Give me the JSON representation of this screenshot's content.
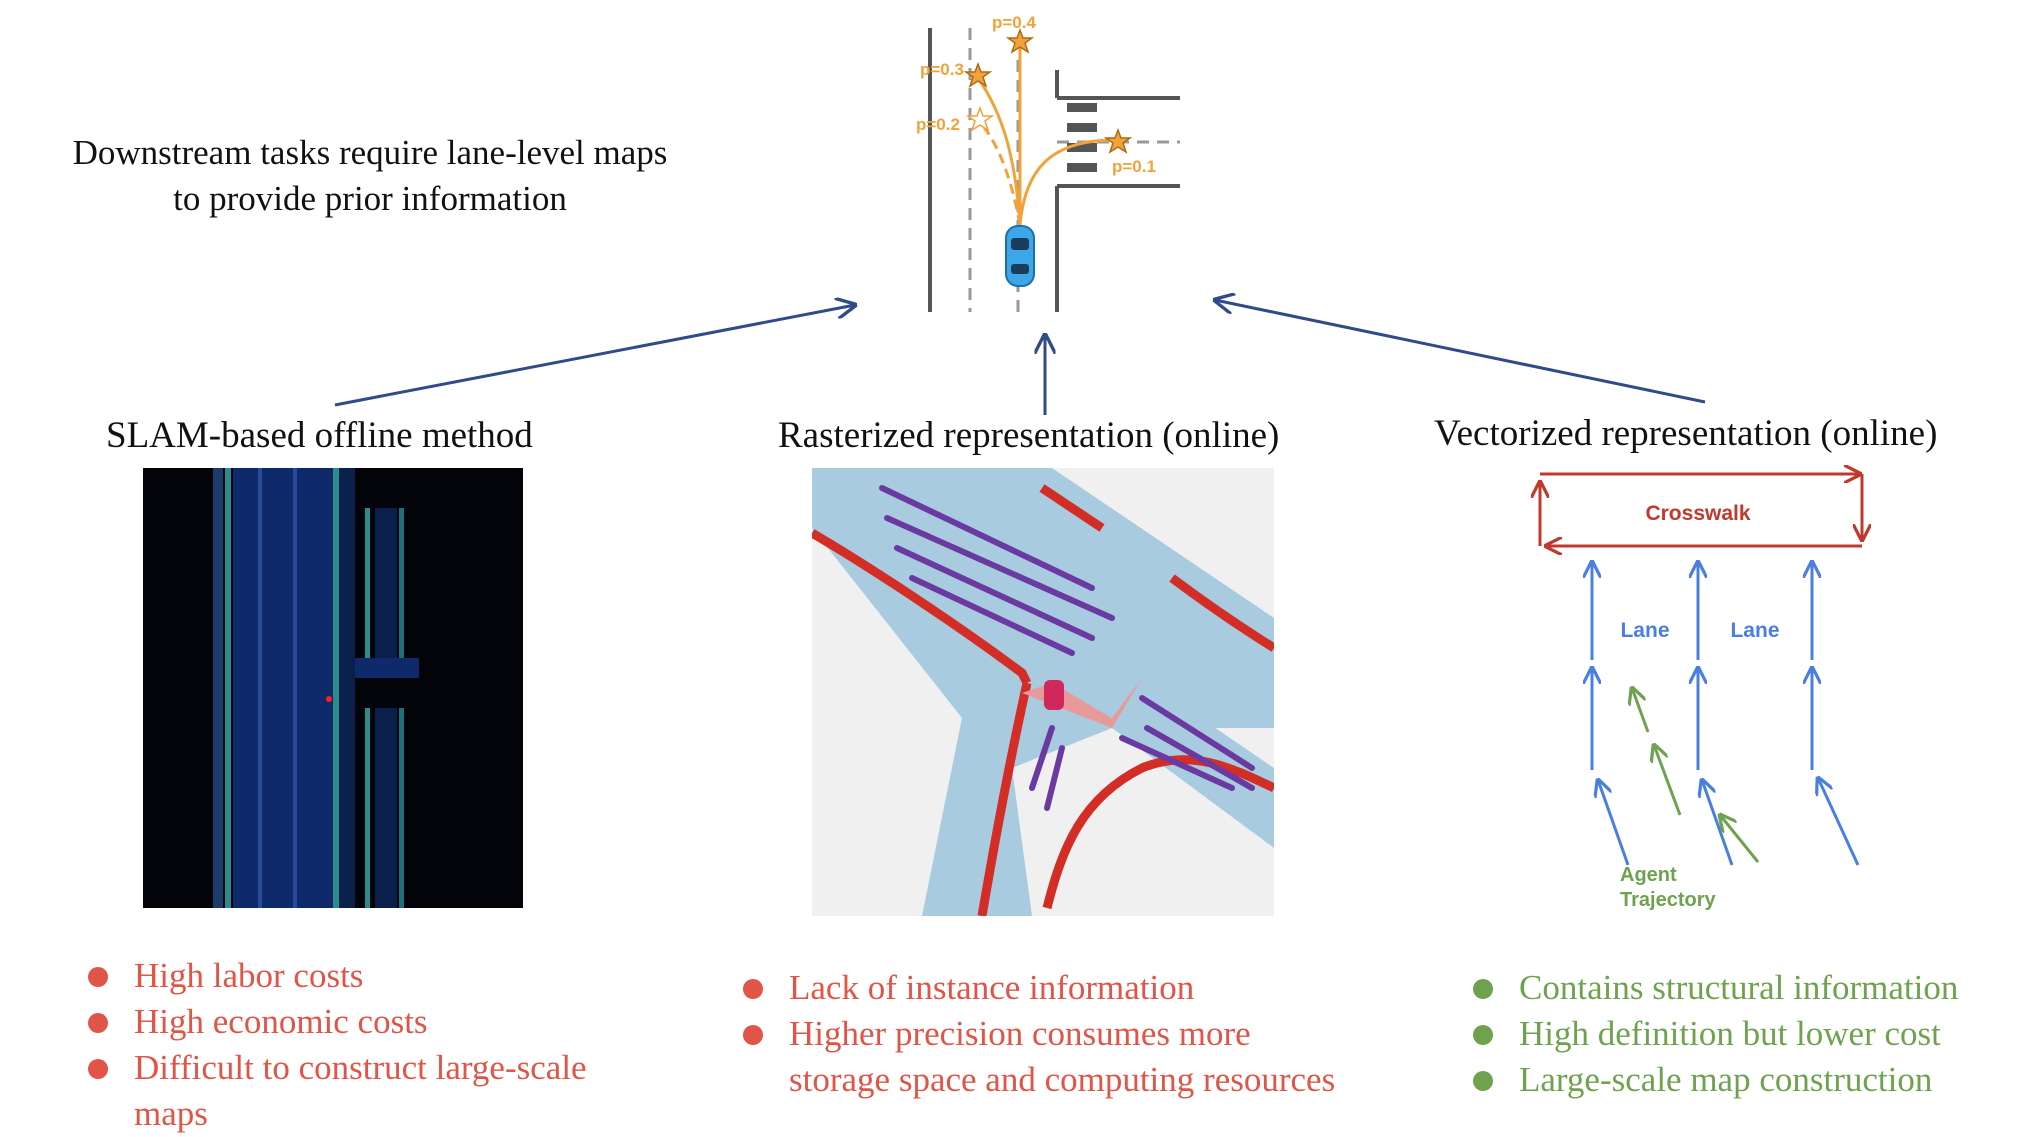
{
  "headline": {
    "line1": "Downstream tasks require lane-level maps",
    "line2": "to provide prior information"
  },
  "scene": {
    "prob_labels": [
      "p=0.4",
      "p=0.3",
      "p=0.2",
      "p=0.1"
    ],
    "trajectory_color": "#f0a33a",
    "car_color": "#3ba7e8"
  },
  "columns": [
    {
      "title": "SLAM-based offline method",
      "bullets": [
        "High labor costs",
        "High economic costs",
        "Difficult to construct large-scale",
        "maps"
      ],
      "bullet_color": "#e05547"
    },
    {
      "title": "Rasterized representation (online)",
      "bullets": [
        "Lack of instance information",
        "Higher precision consumes more",
        "storage space and computing resources"
      ],
      "bullet_color": "#e05547"
    },
    {
      "title": "Vectorized representation (online)",
      "bullets": [
        "Contains structural information",
        "High definition but lower cost",
        "Large-scale map construction"
      ],
      "bullet_color": "#6fa24f"
    }
  ],
  "vector_diagram": {
    "crosswalk_label": "Crosswalk",
    "lane_labels": [
      "Lane",
      "Lane"
    ],
    "agent_label_line1": "Agent",
    "agent_label_line2": "Trajectory",
    "crosswalk_color": "#c0392b",
    "lane_color": "#4a7fe0",
    "agent_color": "#6fa24f"
  },
  "arrow_color": "#2f4b8a"
}
